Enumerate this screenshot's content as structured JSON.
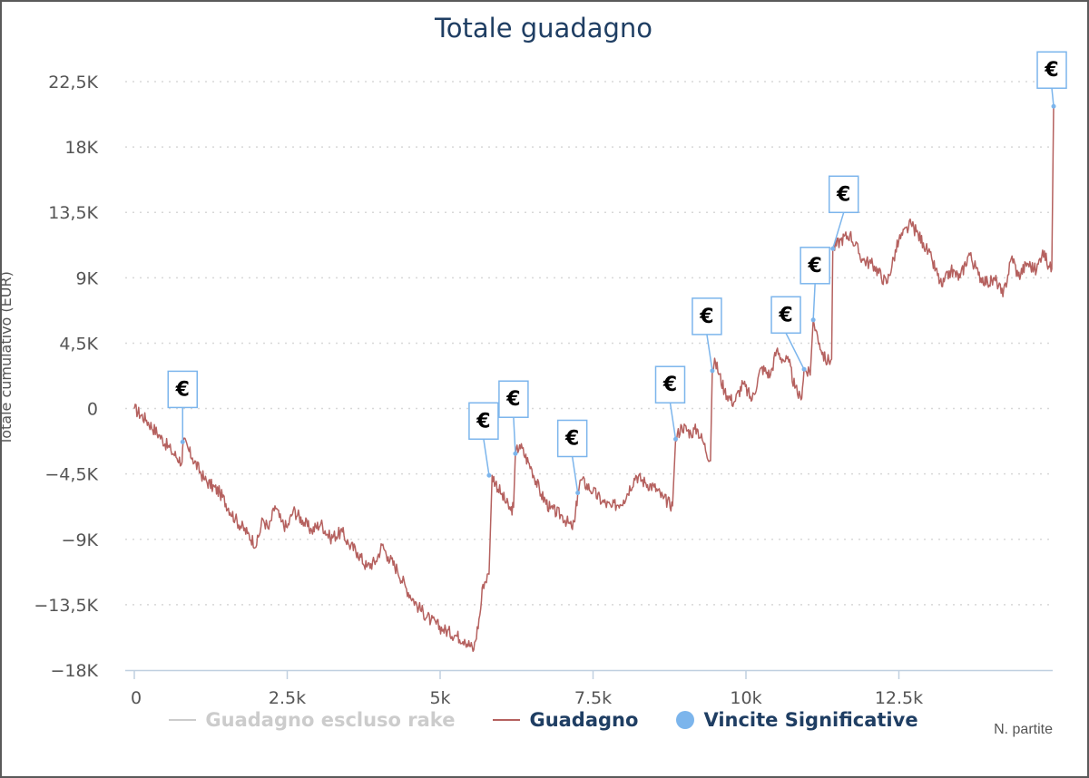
{
  "chart_data": {
    "type": "line",
    "title": "Totale guadagno",
    "xlabel": "N. partite",
    "ylabel": "Totale cumulativo (EUR)",
    "xlim": [
      0,
      15000
    ],
    "ylim": [
      -18000,
      22500
    ],
    "x_ticks": [
      "0",
      "2.5k",
      "5k",
      "7.5k",
      "10k",
      "12.5k"
    ],
    "x_tick_values": [
      0,
      2500,
      5000,
      7500,
      10000,
      12500
    ],
    "y_ticks": [
      "22,5K",
      "18K",
      "13,5K",
      "9K",
      "4,5K",
      "0",
      "−4,5K",
      "−9K",
      "−13,5K",
      "−18K"
    ],
    "y_tick_values": [
      22500,
      18000,
      13500,
      9000,
      4500,
      0,
      -4500,
      -9000,
      -13500,
      -18000
    ],
    "grid": true,
    "legend": "bottom",
    "series": [
      {
        "name": "Guadagno escluso rake",
        "visible": false,
        "color": "#cccccc",
        "points": []
      },
      {
        "name": "Guadagno",
        "visible": true,
        "color": "#b5615f",
        "points": [
          [
            0,
            0
          ],
          [
            200,
            -800
          ],
          [
            400,
            -1800
          ],
          [
            600,
            -2900
          ],
          [
            780,
            -3700
          ],
          [
            800,
            -2200
          ],
          [
            950,
            -3400
          ],
          [
            1150,
            -4900
          ],
          [
            1400,
            -5800
          ],
          [
            1650,
            -7600
          ],
          [
            1850,
            -8600
          ],
          [
            2000,
            -9400
          ],
          [
            2100,
            -7600
          ],
          [
            2200,
            -8300
          ],
          [
            2300,
            -6700
          ],
          [
            2400,
            -7800
          ],
          [
            2500,
            -8200
          ],
          [
            2600,
            -7000
          ],
          [
            2750,
            -7700
          ],
          [
            2900,
            -8400
          ],
          [
            3050,
            -7900
          ],
          [
            3200,
            -8900
          ],
          [
            3400,
            -8500
          ],
          [
            3500,
            -9300
          ],
          [
            3650,
            -9900
          ],
          [
            3800,
            -10900
          ],
          [
            3950,
            -10500
          ],
          [
            4050,
            -9400
          ],
          [
            4150,
            -10200
          ],
          [
            4300,
            -11100
          ],
          [
            4450,
            -12400
          ],
          [
            4650,
            -13700
          ],
          [
            4850,
            -14600
          ],
          [
            5050,
            -15200
          ],
          [
            5250,
            -15600
          ],
          [
            5400,
            -15900
          ],
          [
            5550,
            -16600
          ],
          [
            5650,
            -14200
          ],
          [
            5700,
            -12100
          ],
          [
            5800,
            -11400
          ],
          [
            5850,
            -4600
          ],
          [
            6000,
            -5900
          ],
          [
            6150,
            -7000
          ],
          [
            6200,
            -6800
          ],
          [
            6230,
            -3100
          ],
          [
            6300,
            -2500
          ],
          [
            6500,
            -4200
          ],
          [
            6650,
            -5900
          ],
          [
            6800,
            -6900
          ],
          [
            7000,
            -7400
          ],
          [
            7150,
            -8200
          ],
          [
            7200,
            -7800
          ],
          [
            7250,
            -5800
          ],
          [
            7300,
            -4900
          ],
          [
            7500,
            -5700
          ],
          [
            7650,
            -6400
          ],
          [
            7800,
            -6800
          ],
          [
            8000,
            -6300
          ],
          [
            8200,
            -4600
          ],
          [
            8350,
            -5100
          ],
          [
            8500,
            -5400
          ],
          [
            8650,
            -6200
          ],
          [
            8800,
            -6700
          ],
          [
            8850,
            -2100
          ],
          [
            8950,
            -1200
          ],
          [
            9100,
            -1700
          ],
          [
            9200,
            -1400
          ],
          [
            9300,
            -2300
          ],
          [
            9420,
            -3600
          ],
          [
            9450,
            2600
          ],
          [
            9500,
            3200
          ],
          [
            9650,
            1200
          ],
          [
            9800,
            400
          ],
          [
            9950,
            1700
          ],
          [
            10100,
            600
          ],
          [
            10250,
            2800
          ],
          [
            10400,
            2300
          ],
          [
            10500,
            4000
          ],
          [
            10600,
            3400
          ],
          [
            10700,
            3200
          ],
          [
            10800,
            1400
          ],
          [
            10900,
            600
          ],
          [
            10950,
            2700
          ],
          [
            11050,
            2300
          ],
          [
            11100,
            6100
          ],
          [
            11200,
            4500
          ],
          [
            11300,
            3300
          ],
          [
            11400,
            3400
          ],
          [
            11420,
            11000
          ],
          [
            11550,
            11600
          ],
          [
            11700,
            12000
          ],
          [
            11900,
            10300
          ],
          [
            12100,
            9800
          ],
          [
            12300,
            8600
          ],
          [
            12500,
            11600
          ],
          [
            12700,
            12700
          ],
          [
            12900,
            11400
          ],
          [
            13050,
            10100
          ],
          [
            13200,
            8400
          ],
          [
            13350,
            9500
          ],
          [
            13500,
            9000
          ],
          [
            13650,
            10700
          ],
          [
            13800,
            9200
          ],
          [
            13950,
            8700
          ],
          [
            14100,
            8800
          ],
          [
            14200,
            7700
          ],
          [
            14350,
            10500
          ],
          [
            14450,
            9100
          ],
          [
            14600,
            10000
          ],
          [
            14750,
            9500
          ],
          [
            14850,
            10900
          ],
          [
            14950,
            9800
          ],
          [
            15000,
            9600
          ],
          [
            15030,
            20800
          ]
        ]
      },
      {
        "name": "Vincite Significative",
        "visible": true,
        "color": "#7cb5ec",
        "type": "flags",
        "flag_label": "€",
        "points": [
          [
            790,
            -2300
          ],
          [
            5800,
            -4600
          ],
          [
            6230,
            -3100
          ],
          [
            7250,
            -5800
          ],
          [
            8850,
            -2100
          ],
          [
            9450,
            2600
          ],
          [
            10950,
            2700
          ],
          [
            11100,
            6100
          ],
          [
            11420,
            11000
          ],
          [
            15030,
            20800
          ]
        ]
      }
    ]
  }
}
